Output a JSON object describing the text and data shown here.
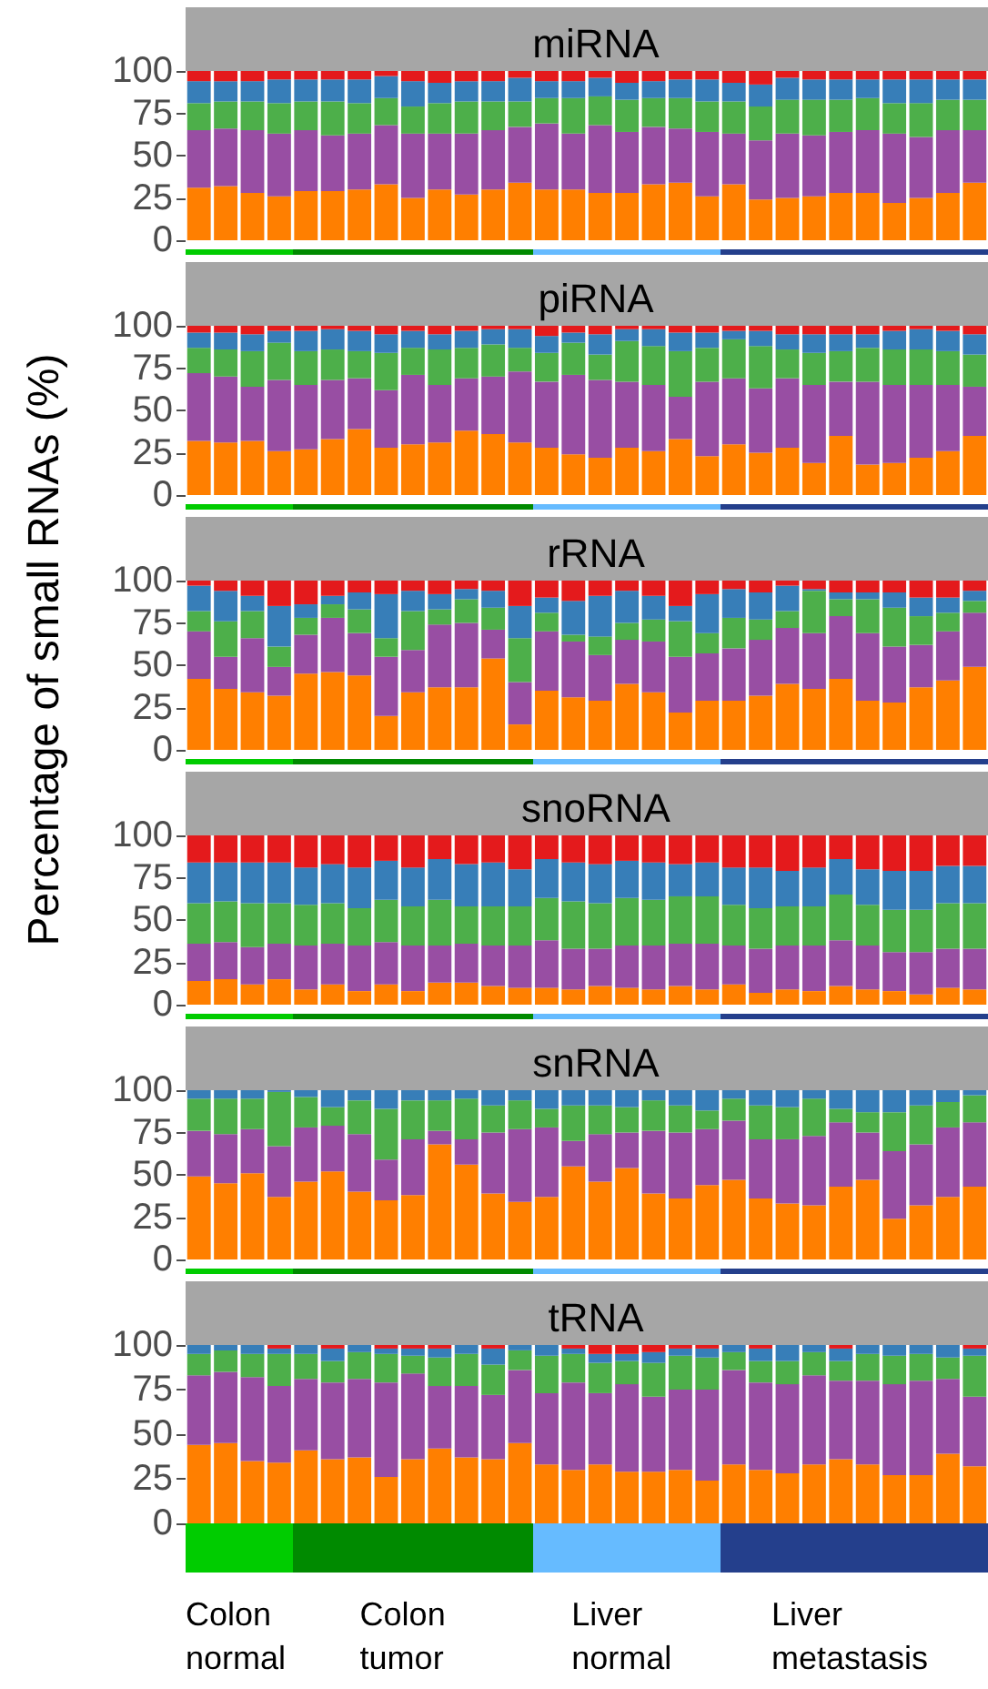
{
  "chart_data": [
    {
      "type": "bar",
      "title": "miRNA",
      "stacked": true,
      "tick_labels": "y",
      "ylim": [
        0,
        100
      ],
      "yticks": [
        0,
        25,
        50,
        75,
        100
      ],
      "categories": [
        null,
        null,
        null,
        null,
        null,
        null,
        null,
        null,
        null,
        null,
        null,
        null,
        null,
        null,
        null,
        null,
        null,
        null,
        null,
        null,
        null,
        null,
        null,
        null,
        null,
        null,
        null,
        null,
        null,
        null
      ],
      "series": [
        {
          "color": "#ff7f00",
          "values": [
            31,
            32,
            28,
            26,
            29,
            29,
            30,
            33,
            25,
            30,
            27,
            30,
            34,
            30,
            30,
            28,
            28,
            33,
            34,
            26,
            33,
            24,
            25,
            26,
            28,
            28,
            22,
            25,
            28,
            34
          ]
        },
        {
          "color": "#984ea3",
          "values": [
            34,
            34,
            37,
            37,
            36,
            33,
            33,
            35,
            38,
            33,
            36,
            35,
            33,
            39,
            33,
            40,
            36,
            34,
            32,
            38,
            30,
            35,
            38,
            36,
            36,
            37,
            41,
            36,
            37,
            31
          ]
        },
        {
          "color": "#4daf4a",
          "values": [
            16,
            16,
            17,
            18,
            17,
            20,
            18,
            16,
            16,
            18,
            19,
            17,
            15,
            15,
            21,
            17,
            19,
            17,
            18,
            18,
            19,
            20,
            20,
            21,
            19,
            19,
            18,
            20,
            18,
            18
          ]
        },
        {
          "color": "#377eb8",
          "values": [
            13,
            12,
            12,
            14,
            13,
            13,
            14,
            13,
            15,
            12,
            12,
            12,
            14,
            10,
            10,
            11,
            10,
            10,
            11,
            13,
            11,
            13,
            13,
            12,
            12,
            11,
            14,
            14,
            12,
            12
          ]
        },
        {
          "color": "#e41a1c",
          "values": [
            6,
            6,
            6,
            5,
            5,
            5,
            5,
            3,
            6,
            7,
            6,
            6,
            4,
            6,
            6,
            4,
            7,
            6,
            5,
            5,
            7,
            8,
            4,
            5,
            5,
            5,
            5,
            5,
            5,
            5
          ]
        }
      ]
    },
    {
      "type": "bar",
      "title": "piRNA",
      "stacked": true,
      "tick_labels": "y",
      "ylim": [
        0,
        100
      ],
      "yticks": [
        0,
        25,
        50,
        75,
        100
      ],
      "categories": [
        null,
        null,
        null,
        null,
        null,
        null,
        null,
        null,
        null,
        null,
        null,
        null,
        null,
        null,
        null,
        null,
        null,
        null,
        null,
        null,
        null,
        null,
        null,
        null,
        null,
        null,
        null,
        null,
        null,
        null
      ],
      "series": [
        {
          "color": "#ff7f00",
          "values": [
            32,
            31,
            32,
            26,
            27,
            33,
            39,
            28,
            30,
            31,
            38,
            36,
            31,
            28,
            24,
            22,
            28,
            26,
            33,
            23,
            30,
            25,
            28,
            19,
            35,
            18,
            19,
            22,
            26,
            35
          ]
        },
        {
          "color": "#984ea3",
          "values": [
            40,
            39,
            32,
            42,
            38,
            35,
            30,
            34,
            41,
            34,
            31,
            34,
            42,
            39,
            47,
            46,
            39,
            39,
            25,
            44,
            39,
            38,
            41,
            46,
            32,
            49,
            46,
            43,
            39,
            29
          ]
        },
        {
          "color": "#4daf4a",
          "values": [
            15,
            16,
            21,
            22,
            20,
            18,
            16,
            22,
            16,
            21,
            18,
            19,
            14,
            17,
            19,
            15,
            24,
            23,
            27,
            20,
            23,
            25,
            17,
            19,
            18,
            20,
            21,
            21,
            20,
            19
          ]
        },
        {
          "color": "#377eb8",
          "values": [
            9,
            10,
            10,
            7,
            12,
            12,
            12,
            11,
            10,
            9,
            10,
            9,
            11,
            10,
            6,
            12,
            7,
            10,
            11,
            9,
            5,
            9,
            9,
            11,
            10,
            8,
            11,
            12,
            12,
            12
          ]
        },
        {
          "color": "#e41a1c",
          "values": [
            4,
            4,
            5,
            3,
            3,
            2,
            3,
            5,
            3,
            5,
            3,
            2,
            2,
            6,
            4,
            5,
            2,
            2,
            4,
            4,
            3,
            3,
            5,
            5,
            5,
            5,
            3,
            2,
            3,
            5
          ]
        }
      ]
    },
    {
      "type": "bar",
      "title": "rRNA",
      "ylabel": "Percentage of small RNAs (%)",
      "stacked": true,
      "tick_labels": "y",
      "ylim": [
        0,
        100
      ],
      "yticks": [
        0,
        25,
        50,
        75,
        100
      ],
      "categories": [
        null,
        null,
        null,
        null,
        null,
        null,
        null,
        null,
        null,
        null,
        null,
        null,
        null,
        null,
        null,
        null,
        null,
        null,
        null,
        null,
        null,
        null,
        null,
        null,
        null,
        null,
        null,
        null,
        null,
        null
      ],
      "series": [
        {
          "color": "#ff7f00",
          "values": [
            42,
            36,
            34,
            32,
            45,
            46,
            44,
            20,
            34,
            37,
            37,
            54,
            15,
            35,
            31,
            29,
            39,
            34,
            22,
            29,
            29,
            32,
            39,
            36,
            42,
            29,
            28,
            37,
            41,
            49
          ]
        },
        {
          "color": "#984ea3",
          "values": [
            28,
            19,
            32,
            17,
            23,
            32,
            25,
            35,
            25,
            37,
            38,
            17,
            25,
            35,
            33,
            27,
            26,
            30,
            33,
            28,
            31,
            33,
            33,
            33,
            37,
            40,
            33,
            25,
            29,
            32
          ]
        },
        {
          "color": "#4daf4a",
          "values": [
            12,
            21,
            16,
            12,
            10,
            8,
            14,
            11,
            23,
            9,
            14,
            13,
            26,
            11,
            4,
            11,
            10,
            13,
            21,
            12,
            18,
            12,
            10,
            25,
            10,
            20,
            23,
            17,
            11,
            7
          ]
        },
        {
          "color": "#377eb8",
          "values": [
            15,
            18,
            9,
            24,
            8,
            5,
            10,
            26,
            12,
            9,
            6,
            10,
            19,
            9,
            20,
            24,
            19,
            14,
            9,
            23,
            17,
            16,
            15,
            1,
            4,
            4,
            9,
            11,
            9,
            6
          ]
        },
        {
          "color": "#e41a1c",
          "values": [
            3,
            6,
            9,
            15,
            14,
            9,
            7,
            8,
            6,
            8,
            5,
            6,
            15,
            10,
            12,
            9,
            6,
            9,
            15,
            8,
            5,
            7,
            3,
            5,
            7,
            7,
            7,
            10,
            10,
            6
          ]
        }
      ]
    },
    {
      "type": "bar",
      "title": "snoRNA",
      "stacked": true,
      "tick_labels": "y",
      "ylim": [
        0,
        100
      ],
      "yticks": [
        0,
        25,
        50,
        75,
        100
      ],
      "categories": [
        null,
        null,
        null,
        null,
        null,
        null,
        null,
        null,
        null,
        null,
        null,
        null,
        null,
        null,
        null,
        null,
        null,
        null,
        null,
        null,
        null,
        null,
        null,
        null,
        null,
        null,
        null,
        null,
        null,
        null
      ],
      "series": [
        {
          "color": "#ff7f00",
          "values": [
            14,
            15,
            12,
            15,
            9,
            12,
            8,
            12,
            8,
            13,
            13,
            11,
            10,
            10,
            9,
            11,
            10,
            9,
            11,
            9,
            12,
            7,
            9,
            8,
            11,
            9,
            8,
            6,
            10,
            9
          ]
        },
        {
          "color": "#984ea3",
          "values": [
            22,
            22,
            22,
            21,
            26,
            24,
            27,
            25,
            27,
            22,
            23,
            24,
            25,
            28,
            24,
            22,
            25,
            26,
            25,
            27,
            23,
            26,
            26,
            27,
            27,
            26,
            23,
            25,
            23,
            24
          ]
        },
        {
          "color": "#4daf4a",
          "values": [
            24,
            24,
            26,
            24,
            24,
            24,
            22,
            25,
            23,
            27,
            22,
            23,
            23,
            25,
            28,
            27,
            28,
            27,
            28,
            28,
            24,
            24,
            23,
            23,
            27,
            24,
            25,
            25,
            27,
            27
          ]
        },
        {
          "color": "#377eb8",
          "values": [
            24,
            23,
            24,
            24,
            22,
            23,
            24,
            23,
            23,
            24,
            25,
            26,
            22,
            23,
            23,
            23,
            22,
            22,
            19,
            20,
            22,
            24,
            21,
            23,
            21,
            21,
            23,
            23,
            22,
            22
          ]
        },
        {
          "color": "#e41a1c",
          "values": [
            16,
            16,
            16,
            16,
            19,
            17,
            19,
            15,
            19,
            14,
            17,
            16,
            20,
            14,
            16,
            17,
            15,
            16,
            17,
            16,
            19,
            19,
            21,
            19,
            14,
            20,
            21,
            21,
            18,
            18
          ]
        }
      ]
    },
    {
      "type": "bar",
      "title": "snRNA",
      "stacked": true,
      "tick_labels": "y",
      "ylim": [
        0,
        100
      ],
      "yticks": [
        0,
        25,
        50,
        75,
        100
      ],
      "categories": [
        null,
        null,
        null,
        null,
        null,
        null,
        null,
        null,
        null,
        null,
        null,
        null,
        null,
        null,
        null,
        null,
        null,
        null,
        null,
        null,
        null,
        null,
        null,
        null,
        null,
        null,
        null,
        null,
        null,
        null
      ],
      "series": [
        {
          "color": "#ff7f00",
          "values": [
            49,
            45,
            51,
            37,
            46,
            52,
            40,
            35,
            38,
            68,
            56,
            39,
            34,
            37,
            55,
            46,
            54,
            39,
            36,
            44,
            47,
            36,
            33,
            32,
            43,
            47,
            24,
            32,
            37,
            43
          ]
        },
        {
          "color": "#984ea3",
          "values": [
            27,
            29,
            26,
            30,
            32,
            27,
            34,
            24,
            33,
            8,
            15,
            36,
            43,
            41,
            15,
            28,
            21,
            37,
            39,
            33,
            35,
            35,
            38,
            41,
            38,
            28,
            40,
            36,
            41,
            38
          ]
        },
        {
          "color": "#4daf4a",
          "values": [
            19,
            21,
            18,
            32,
            18,
            11,
            20,
            30,
            23,
            18,
            24,
            16,
            17,
            11,
            21,
            17,
            15,
            18,
            16,
            11,
            13,
            20,
            19,
            22,
            8,
            12,
            23,
            23,
            15,
            16
          ]
        },
        {
          "color": "#377eb8",
          "values": [
            5,
            5,
            5,
            1,
            4,
            10,
            6,
            11,
            6,
            6,
            5,
            9,
            6,
            11,
            9,
            9,
            10,
            6,
            9,
            12,
            5,
            9,
            10,
            5,
            11,
            13,
            13,
            9,
            7,
            3
          ]
        }
      ]
    },
    {
      "type": "bar",
      "title": "tRNA",
      "stacked": true,
      "tick_labels": "y",
      "ylim": [
        0,
        100
      ],
      "yticks": [
        0,
        25,
        50,
        75,
        100
      ],
      "annotations": [
        "Colon normal",
        "Colon tumor",
        "Liver normal",
        "Liver metastasis"
      ],
      "categories": [
        null,
        null,
        null,
        null,
        null,
        null,
        null,
        null,
        null,
        null,
        null,
        null,
        null,
        null,
        null,
        null,
        null,
        null,
        null,
        null,
        null,
        null,
        null,
        null,
        null,
        null,
        null,
        null,
        null,
        null
      ],
      "series": [
        {
          "color": "#ff7f00",
          "values": [
            44,
            45,
            35,
            34,
            41,
            36,
            37,
            26,
            36,
            42,
            37,
            36,
            45,
            33,
            30,
            33,
            29,
            29,
            30,
            24,
            33,
            30,
            28,
            33,
            36,
            33,
            27,
            27,
            39,
            32
          ]
        },
        {
          "color": "#984ea3",
          "values": [
            39,
            40,
            47,
            43,
            40,
            43,
            44,
            53,
            48,
            35,
            40,
            36,
            41,
            40,
            49,
            40,
            49,
            42,
            45,
            51,
            53,
            49,
            50,
            50,
            44,
            47,
            51,
            53,
            42,
            39
          ]
        },
        {
          "color": "#4daf4a",
          "values": [
            12,
            12,
            13,
            18,
            14,
            12,
            15,
            16,
            10,
            16,
            18,
            17,
            11,
            21,
            16,
            17,
            13,
            19,
            19,
            18,
            10,
            12,
            13,
            13,
            11,
            15,
            16,
            15,
            12,
            23
          ]
        },
        {
          "color": "#377eb8",
          "values": [
            5,
            3,
            5,
            3,
            5,
            7,
            4,
            3,
            4,
            5,
            5,
            9,
            3,
            6,
            3,
            5,
            4,
            6,
            4,
            5,
            4,
            7,
            9,
            4,
            7,
            5,
            6,
            5,
            7,
            4
          ]
        },
        {
          "color": "#e41a1c",
          "values": [
            0,
            0,
            0,
            2,
            0,
            2,
            0,
            2,
            2,
            2,
            0,
            2,
            0,
            0,
            2,
            5,
            5,
            4,
            2,
            2,
            0,
            2,
            0,
            0,
            2,
            0,
            0,
            0,
            0,
            2
          ]
        }
      ]
    }
  ]
}
